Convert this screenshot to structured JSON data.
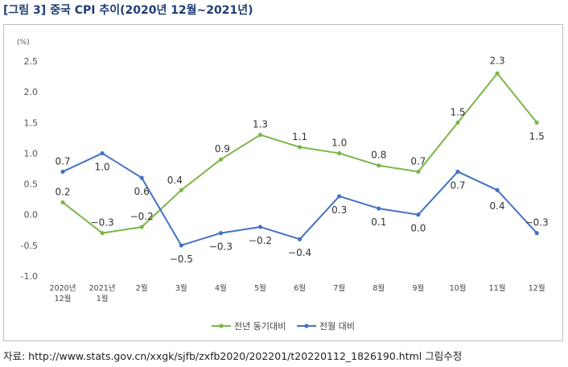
{
  "figure": {
    "title_tag": "[그림 3]",
    "title": "중국 CPI 추이(2020년 12월~2021년)",
    "source": "자료: http://www.stats.gov.cn/xxgk/sjfb/zxfb2020/202201/t20220112_1826190.html 그림수정"
  },
  "chart_data": {
    "type": "line",
    "unit_label": "(%)",
    "categories": [
      [
        "2020년",
        "12월"
      ],
      [
        "2021년",
        "1월"
      ],
      [
        "2월"
      ],
      [
        "3월"
      ],
      [
        "4월"
      ],
      [
        "5월"
      ],
      [
        "6월"
      ],
      [
        "7월"
      ],
      [
        "8월"
      ],
      [
        "9월"
      ],
      [
        "10월"
      ],
      [
        "11월"
      ],
      [
        "12월"
      ]
    ],
    "ylim": [
      -1.0,
      2.5
    ],
    "yticks": [
      "2.5",
      "2.0",
      "1.5",
      "1.0",
      "0.5",
      "0.0",
      "-0.5",
      "-1.0"
    ],
    "ytick_values": [
      2.5,
      2.0,
      1.5,
      1.0,
      0.5,
      0.0,
      -0.5,
      -1.0
    ],
    "grid": false,
    "legend_position": "bottom",
    "series": [
      {
        "name": "전년 동기대비",
        "color": "#7ab648",
        "values": [
          0.2,
          -0.3,
          -0.2,
          0.4,
          0.9,
          1.3,
          1.1,
          1.0,
          0.8,
          0.7,
          1.5,
          2.3,
          1.5
        ],
        "labels": [
          "0.2",
          "−0.3",
          "−0.2",
          "0.4",
          "0.9",
          "1.3",
          "1.1",
          "1.0",
          "0.8",
          "0.7",
          "1.5",
          "2.3",
          "1.5"
        ]
      },
      {
        "name": "전월 대비",
        "color": "#4472c4",
        "values": [
          0.7,
          1.0,
          0.6,
          -0.5,
          -0.3,
          -0.2,
          -0.4,
          0.3,
          0.1,
          0.0,
          0.7,
          0.4,
          -0.3
        ],
        "labels": [
          "0.7",
          "1.0",
          "0.6",
          "−0.5",
          "−0.3",
          "−0.2",
          "−0.4",
          "0.3",
          "0.1",
          "0.0",
          "0.7",
          "0.4",
          "−0.3"
        ]
      }
    ]
  }
}
